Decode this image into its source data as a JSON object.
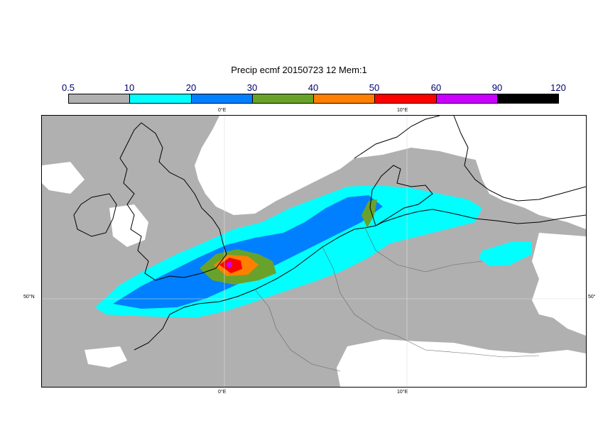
{
  "title": "Precip ecmf 20150723 12 Mem:1",
  "legend": {
    "ticks": [
      "0.5",
      "10",
      "20",
      "30",
      "40",
      "50",
      "60",
      "90",
      "120"
    ],
    "colors": [
      "#b0b0b0",
      "#00ffff",
      "#0080ff",
      "#69a22b",
      "#ff8000",
      "#ff0000",
      "#cc00ff",
      "#000000"
    ]
  },
  "map": {
    "lon_labels_top": [
      "0°E",
      "10°E"
    ],
    "lon_labels_bottom": [
      "0°E",
      "10°E"
    ],
    "lat_label_left": "50°N",
    "lat_label_right": "50°",
    "land_color": "#ffffff",
    "precip_color": "#b0b0b0",
    "coastline_color": "#000000",
    "border_color": "#666666"
  }
}
